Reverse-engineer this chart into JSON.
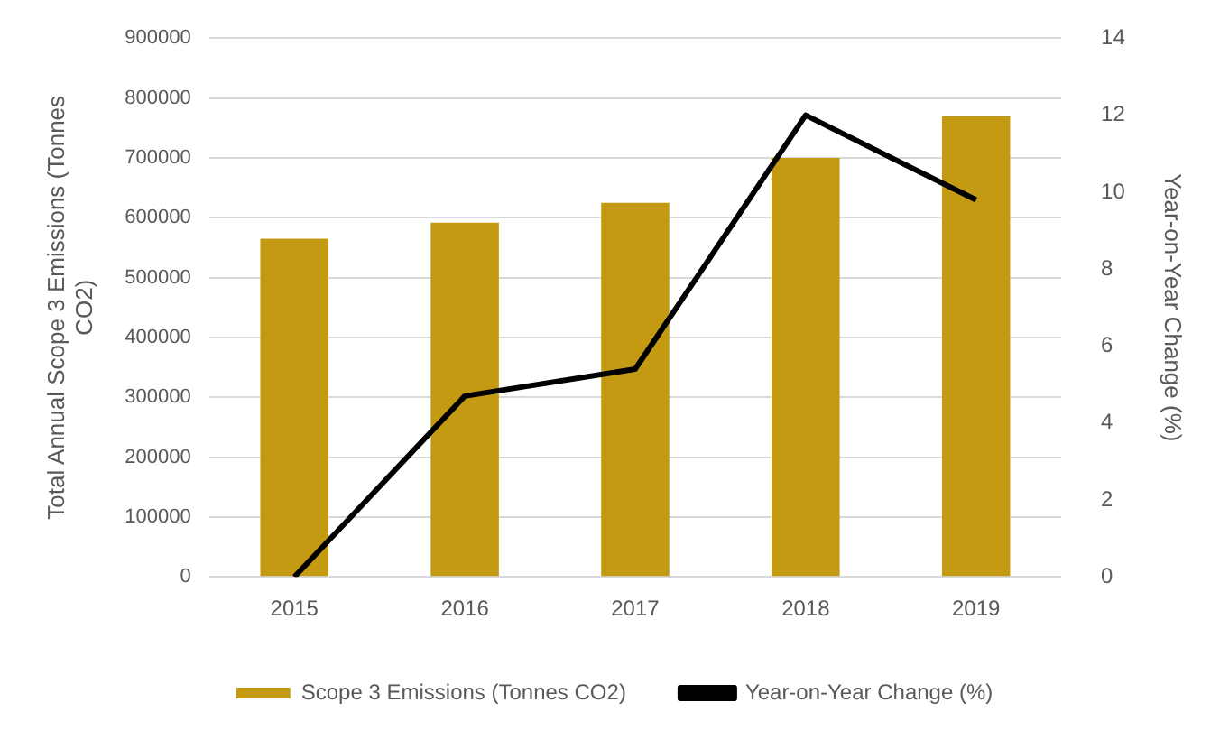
{
  "chart_data": {
    "type": "bar",
    "categories": [
      "2015",
      "2016",
      "2017",
      "2018",
      "2019"
    ],
    "series": [
      {
        "name": "Scope 3 Emissions (Tonnes CO2)",
        "color": "#c49a12",
        "values": [
          565000,
          592000,
          625000,
          700000,
          770000
        ]
      },
      {
        "name": "Year-on-Year Change (%)",
        "type": "line",
        "axis": "y2",
        "color": "#000000",
        "values": [
          0,
          4.7,
          5.4,
          12,
          9.8
        ]
      }
    ],
    "ylabel": "Total Annual Scope 3 Emissions (Tonnes CO2)",
    "y2label": "Year-on-Year Change (%)",
    "ylim": [
      0,
      900000
    ],
    "yticks": [
      0,
      100000,
      200000,
      300000,
      400000,
      500000,
      600000,
      700000,
      800000,
      900000
    ],
    "y2lim": [
      0,
      14
    ],
    "y2ticks": [
      0,
      2,
      4,
      6,
      8,
      10,
      12,
      14
    ],
    "grid": "y",
    "legend": "bottom",
    "marker": "none",
    "line_style": "solid"
  }
}
